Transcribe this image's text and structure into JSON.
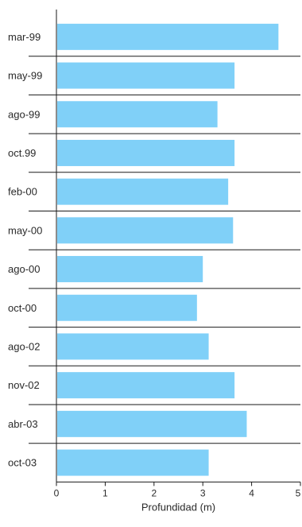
{
  "chart_data": {
    "type": "bar",
    "orientation": "horizontal",
    "categories": [
      "mar-99",
      "may-99",
      "ago-99",
      "oct.99",
      "feb-00",
      "may-00",
      "ago-00",
      "oct-00",
      "ago-02",
      "nov-02",
      "abr-03",
      "oct-03"
    ],
    "values": [
      4.55,
      3.65,
      3.3,
      3.65,
      3.52,
      3.62,
      3.0,
      2.88,
      3.12,
      3.65,
      3.9,
      3.12
    ],
    "xlabel": "Profundidad (m)",
    "ylabel": "",
    "xlim": [
      0,
      5
    ],
    "xticks": [
      "0",
      "1",
      "2",
      "3",
      "4",
      "5"
    ],
    "bar_color": "#80d0f8",
    "separator_color": "#1a1a1a"
  }
}
